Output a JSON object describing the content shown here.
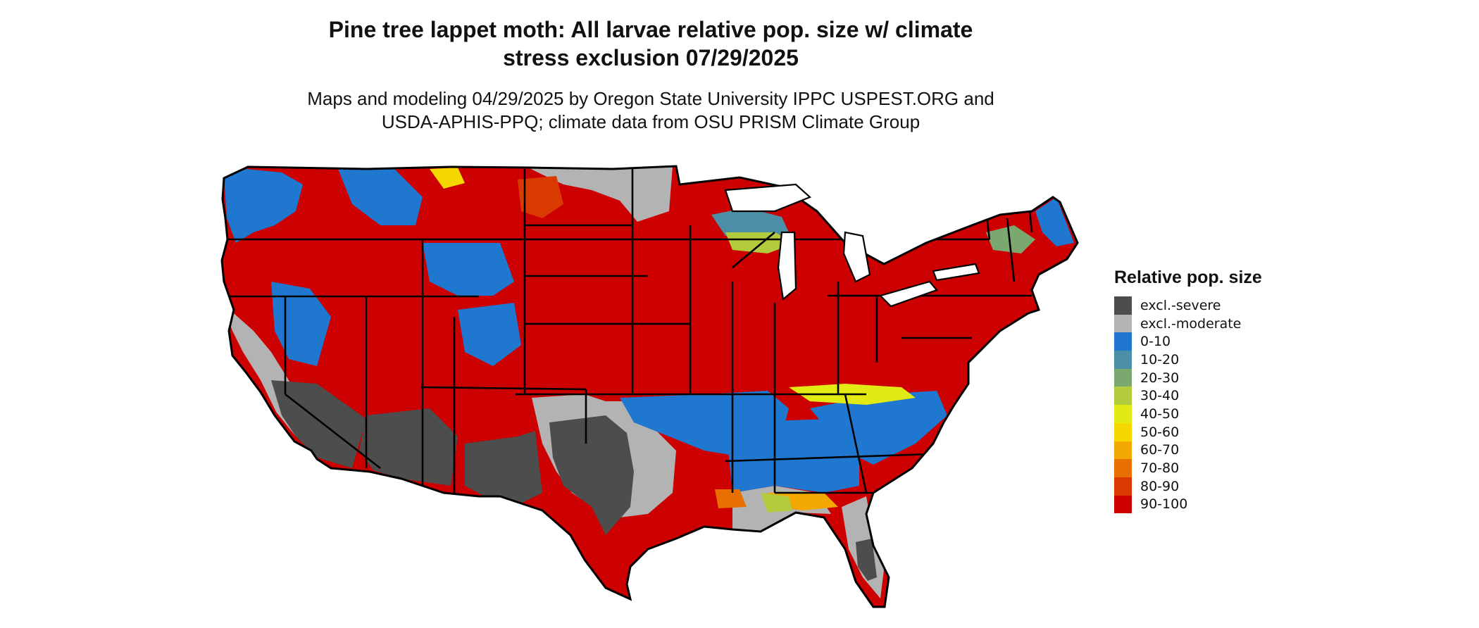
{
  "title_lines": [
    "Pine tree lappet moth: All larvae relative pop. size w/ climate",
    "stress exclusion 07/29/2025"
  ],
  "subtitle_lines": [
    "Maps and modeling 04/29/2025 by Oregon State University IPPC USPEST.ORG and",
    "USDA-APHIS-PPQ; climate data from OSU PRISM Climate Group"
  ],
  "legend": {
    "title": "Relative pop. size",
    "items": [
      {
        "label": "excl.-severe",
        "color": "#4d4d4d"
      },
      {
        "label": "excl.-moderate",
        "color": "#b3b3b3"
      },
      {
        "label": "0-10",
        "color": "#1f77d0"
      },
      {
        "label": "10-20",
        "color": "#4a8fa6"
      },
      {
        "label": "20-30",
        "color": "#7aa86e"
      },
      {
        "label": "30-40",
        "color": "#b2cc3e"
      },
      {
        "label": "40-50",
        "color": "#e2ea14"
      },
      {
        "label": "50-60",
        "color": "#f5d800"
      },
      {
        "label": "60-70",
        "color": "#f2a800"
      },
      {
        "label": "70-80",
        "color": "#e86f00"
      },
      {
        "label": "80-90",
        "color": "#d93a00"
      },
      {
        "label": "90-100",
        "color": "#cc0000"
      }
    ]
  },
  "map": {
    "region": "Contiguous United States",
    "dominant_category": "90-100",
    "boundary_color": "#000000"
  }
}
